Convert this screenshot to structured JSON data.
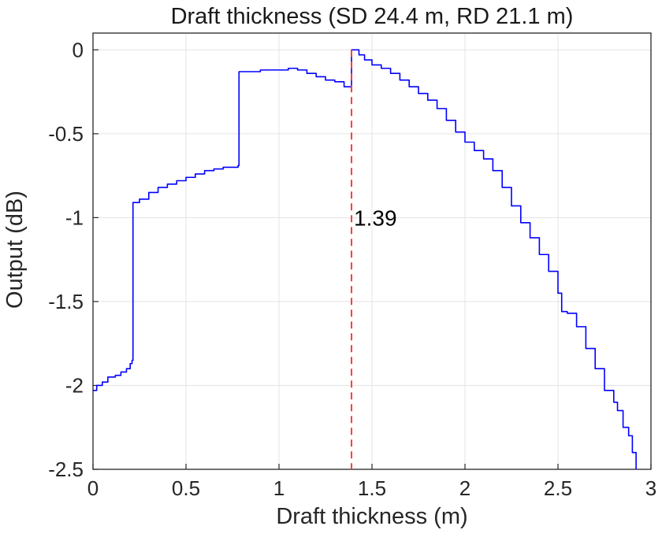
{
  "chart_data": {
    "type": "line",
    "title": "Draft thickness (SD 24.4 m, RD 21.1 m)",
    "xlabel": "Draft thickness (m)",
    "ylabel": "Output (dB)",
    "xlim": [
      0,
      3
    ],
    "ylim": [
      -2.5,
      0.1
    ],
    "grid": true,
    "x_ticks": [
      {
        "value": 0,
        "label": "0"
      },
      {
        "value": 0.5,
        "label": "0.5"
      },
      {
        "value": 1,
        "label": "1"
      },
      {
        "value": 1.5,
        "label": "1.5"
      },
      {
        "value": 2,
        "label": "2"
      },
      {
        "value": 2.5,
        "label": "2.5"
      },
      {
        "value": 3,
        "label": "3"
      }
    ],
    "y_ticks": [
      {
        "value": 0,
        "label": "0"
      },
      {
        "value": -0.5,
        "label": "-0.5"
      },
      {
        "value": -1,
        "label": "-1"
      },
      {
        "value": -1.5,
        "label": "-1.5"
      },
      {
        "value": -2,
        "label": "-2"
      },
      {
        "value": -2.5,
        "label": "-2.5"
      }
    ],
    "series": [
      {
        "color": "#0000ff",
        "x": [
          0,
          0.02,
          0.05,
          0.08,
          0.1,
          0.12,
          0.15,
          0.18,
          0.2,
          0.21,
          0.215,
          0.25,
          0.3,
          0.35,
          0.4,
          0.45,
          0.5,
          0.55,
          0.6,
          0.65,
          0.7,
          0.75,
          0.78,
          0.785,
          0.8,
          0.85,
          0.9,
          0.95,
          1.0,
          1.05,
          1.1,
          1.15,
          1.2,
          1.25,
          1.3,
          1.35,
          1.37,
          1.375,
          1.39,
          1.41,
          1.43,
          1.46,
          1.5,
          1.55,
          1.6,
          1.65,
          1.7,
          1.75,
          1.8,
          1.85,
          1.9,
          1.95,
          2.0,
          2.05,
          2.1,
          2.15,
          2.2,
          2.25,
          2.3,
          2.35,
          2.4,
          2.45,
          2.5,
          2.52,
          2.55,
          2.6,
          2.65,
          2.7,
          2.75,
          2.8,
          2.82,
          2.85,
          2.88,
          2.9,
          2.92
        ],
        "y": [
          -2.03,
          -2.0,
          -1.98,
          -1.95,
          -1.95,
          -1.94,
          -1.92,
          -1.9,
          -1.87,
          -1.85,
          -0.91,
          -0.89,
          -0.85,
          -0.82,
          -0.8,
          -0.78,
          -0.76,
          -0.74,
          -0.72,
          -0.71,
          -0.7,
          -0.7,
          -0.69,
          -0.13,
          -0.13,
          -0.13,
          -0.12,
          -0.12,
          -0.12,
          -0.11,
          -0.12,
          -0.14,
          -0.16,
          -0.18,
          -0.19,
          -0.22,
          -0.22,
          -0.22,
          0.0,
          0.0,
          -0.03,
          -0.06,
          -0.09,
          -0.11,
          -0.14,
          -0.18,
          -0.22,
          -0.26,
          -0.3,
          -0.35,
          -0.42,
          -0.49,
          -0.55,
          -0.6,
          -0.65,
          -0.72,
          -0.82,
          -0.93,
          -1.03,
          -1.12,
          -1.22,
          -1.32,
          -1.45,
          -1.56,
          -1.57,
          -1.65,
          -1.78,
          -1.9,
          -2.03,
          -2.1,
          -2.15,
          -2.25,
          -2.3,
          -2.4,
          -2.5
        ]
      }
    ],
    "annotations": [
      {
        "type": "vline",
        "x": 1.39,
        "color": "#ff3b3b",
        "style": "dashed",
        "label": "1.39",
        "label_y": -1.0
      }
    ]
  }
}
